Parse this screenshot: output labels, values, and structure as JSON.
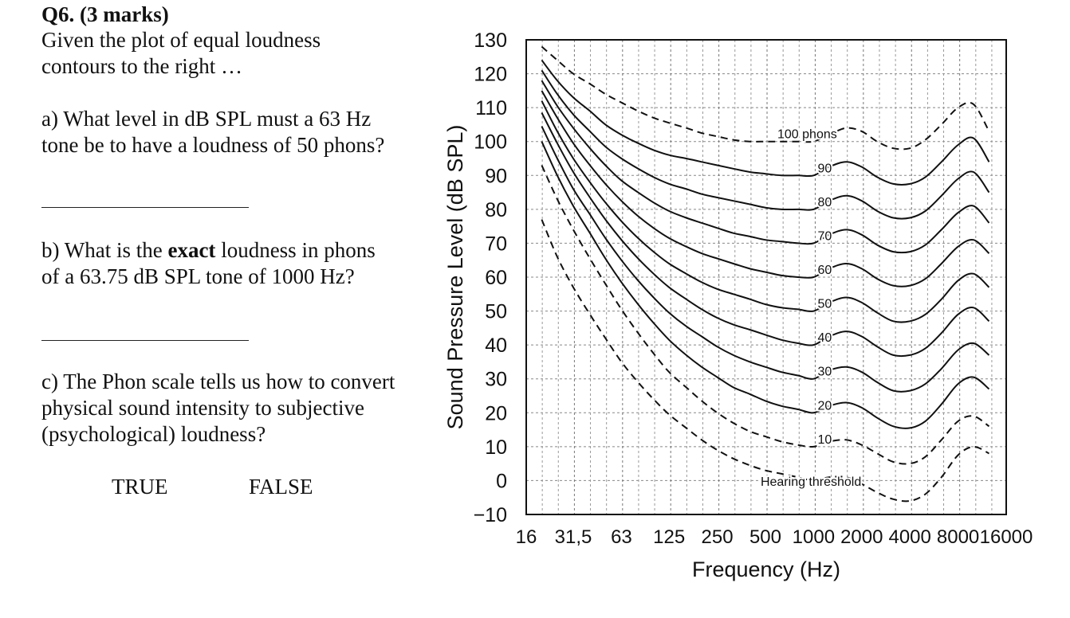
{
  "question": {
    "title": "Q6. (3 marks)",
    "intro_line1": "Given the plot of equal loudness",
    "intro_line2": "contours to the right …",
    "a_line1": "a) What level in dB SPL must a 63 Hz",
    "a_line2": "tone be to have a loudness of 50 phons?",
    "b_pre": "b) What is the ",
    "b_bold": "exact",
    "b_post": " loudness in phons",
    "b_line2": "of a 63.75 dB SPL tone of 1000 Hz?",
    "c_line1": "c) The Phon scale tells us how to convert",
    "c_line2": "physical sound intensity to subjective",
    "c_line3": "(psychological) loudness?",
    "true_label": "TRUE",
    "false_label": "FALSE"
  },
  "chart_data": {
    "type": "line",
    "xlabel": "Frequency (Hz)",
    "ylabel": "Sound Pressure Level (dB SPL)",
    "x_scale": "log",
    "xlim": [
      16,
      16000
    ],
    "ylim": [
      -10,
      130
    ],
    "x_ticks": [
      16,
      31.5,
      63,
      125,
      250,
      500,
      1000,
      2000,
      4000,
      8000,
      16000
    ],
    "x_tick_labels": [
      "16",
      "31,5",
      "63",
      "125",
      "250",
      "500",
      "1000",
      "2000",
      "4000",
      "8000",
      "16000"
    ],
    "y_ticks": [
      -10,
      0,
      10,
      20,
      30,
      40,
      50,
      60,
      70,
      80,
      90,
      100,
      110,
      120,
      130
    ],
    "y_tick_labels": [
      "−10",
      "0",
      "10",
      "20",
      "30",
      "40",
      "50",
      "60",
      "70",
      "80",
      "90",
      "100",
      "110",
      "120",
      "130"
    ],
    "grid": true,
    "x": [
      20,
      25,
      31.5,
      40,
      50,
      63,
      80,
      100,
      125,
      160,
      200,
      250,
      315,
      400,
      500,
      630,
      800,
      1000,
      1250,
      1600,
      2000,
      2500,
      3150,
      4000,
      5000,
      6300,
      8000,
      10000,
      12500
    ],
    "series": [
      {
        "label": "100 phons",
        "dashed": true,
        "values": [
          128,
          124,
          120,
          117,
          114,
          111.5,
          109,
          107,
          105.5,
          104,
          102.5,
          101.5,
          100.5,
          100,
          100,
          100,
          100,
          100,
          102,
          104,
          103,
          100,
          98,
          98,
          100.5,
          105,
          110,
          111,
          103
        ]
      },
      {
        "label": "90",
        "dashed": false,
        "values": [
          124,
          118,
          113,
          109,
          105,
          102,
          99.5,
          97.5,
          96,
          95,
          94,
          93,
          92,
          91,
          90.5,
          90,
          90,
          90,
          92.5,
          94,
          92.5,
          89.5,
          87.5,
          87.5,
          89.5,
          94,
          99,
          101,
          94
        ]
      },
      {
        "label": "80",
        "dashed": false,
        "values": [
          121,
          114,
          108,
          103,
          98.5,
          95,
          92,
          89.5,
          87.5,
          86,
          84.5,
          83.5,
          82.5,
          81.5,
          80.5,
          80,
          80,
          80,
          82.5,
          84,
          82.5,
          79.5,
          77.5,
          77.5,
          79.5,
          84,
          89,
          91,
          85
        ]
      },
      {
        "label": "70",
        "dashed": false,
        "values": [
          118,
          110.5,
          104,
          98,
          93,
          88.5,
          85,
          82,
          79.5,
          77.5,
          76,
          74.5,
          73,
          72,
          71,
          70.5,
          70,
          70,
          72.5,
          74,
          72.5,
          69.5,
          67.5,
          67.5,
          69.5,
          74,
          79,
          81,
          76
        ]
      },
      {
        "label": "60",
        "dashed": false,
        "values": [
          115,
          107,
          99.5,
          93,
          87.5,
          82.5,
          78,
          74.5,
          71.5,
          69,
          67,
          65.5,
          64,
          62.5,
          61.5,
          60.5,
          60,
          60,
          62.5,
          64,
          62.5,
          59.5,
          57.5,
          57.5,
          59.5,
          64,
          69,
          71,
          67
        ]
      },
      {
        "label": "50",
        "dashed": false,
        "values": [
          112,
          103,
          95,
          88,
          82,
          76.5,
          71.5,
          67.5,
          64,
          61,
          58.5,
          56.5,
          55,
          53.5,
          52,
          51,
          50.5,
          50,
          52.5,
          54,
          52.5,
          49.5,
          47,
          47,
          49,
          53.5,
          59,
          61,
          57
        ]
      },
      {
        "label": "40",
        "dashed": false,
        "values": [
          108.5,
          99.5,
          91,
          83.5,
          77,
          71,
          65.5,
          61,
          57,
          53.5,
          50.5,
          48,
          46,
          44.5,
          43,
          41.5,
          40.5,
          40,
          42.5,
          44,
          42.5,
          39.5,
          37,
          37,
          39,
          43.5,
          49,
          51,
          47
        ]
      },
      {
        "label": "30",
        "dashed": false,
        "values": [
          104.5,
          95,
          86,
          78.5,
          71.5,
          65,
          59,
          54,
          49.5,
          45.5,
          42.5,
          39.5,
          37,
          35,
          33.5,
          32,
          31,
          30,
          32.5,
          33.5,
          32,
          29,
          26.5,
          26.5,
          28.5,
          33,
          38.5,
          40.5,
          37
        ]
      },
      {
        "label": "20",
        "dashed": false,
        "values": [
          100,
          90,
          81,
          73,
          65.5,
          58.5,
          52,
          46.5,
          41.5,
          37,
          33.5,
          30.5,
          27.5,
          25.5,
          23.5,
          22,
          21,
          20,
          22,
          23,
          21.5,
          18.5,
          16,
          15.5,
          17.5,
          22.5,
          28.5,
          30.5,
          27
        ]
      },
      {
        "label": "10",
        "dashed": true,
        "values": [
          93,
          83,
          74,
          65.5,
          58,
          50.5,
          43.5,
          37.5,
          32,
          27.5,
          23.5,
          20,
          17,
          14.5,
          13,
          11.5,
          10.5,
          10,
          11.5,
          12,
          10.5,
          8,
          5.5,
          5,
          7,
          12,
          17.5,
          19,
          16
        ]
      },
      {
        "label": "Hearing threshold",
        "dashed": true,
        "values": [
          77,
          66,
          57,
          49,
          42,
          35,
          29,
          24,
          19.5,
          15.5,
          12,
          9,
          6.5,
          4.5,
          3,
          2,
          1,
          0,
          1,
          1,
          -1,
          -3.5,
          -5.5,
          -6,
          -4,
          1,
          7.5,
          10,
          8
        ]
      }
    ]
  }
}
